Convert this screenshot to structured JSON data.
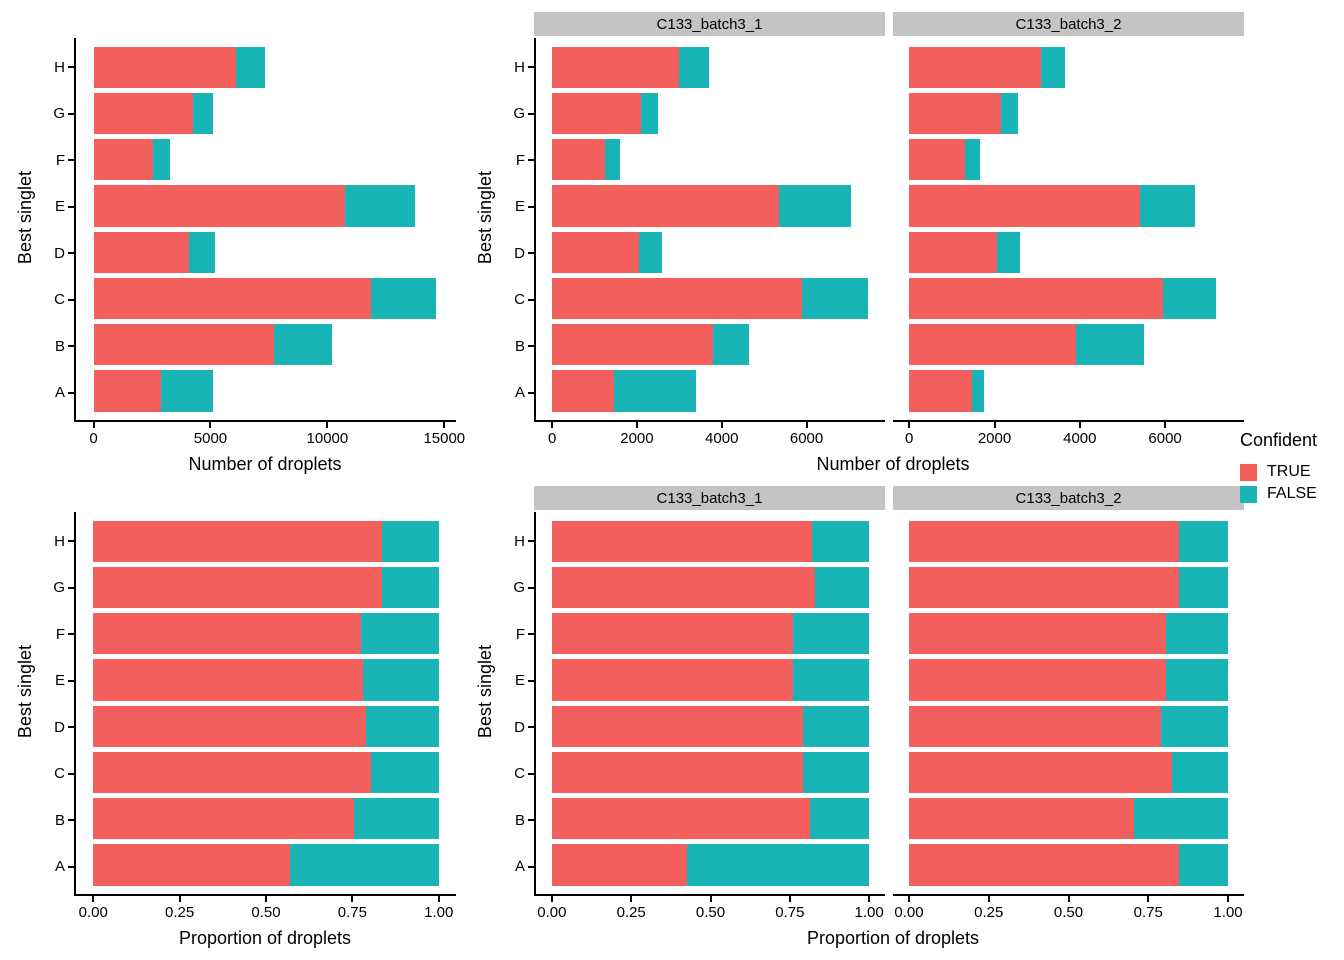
{
  "figure": {
    "background": "#ffffff"
  },
  "legend": {
    "title": "Confident",
    "items": [
      {
        "label": "TRUE",
        "color": "#f25f5c"
      },
      {
        "label": "FALSE",
        "color": "#19b4b6"
      }
    ]
  },
  "colors": {
    "true_fill": "#f25f5c",
    "false_fill": "#19b4b6",
    "strip_bg": "#c4c4c4",
    "axis_line": "#000000"
  },
  "categories": [
    "A",
    "B",
    "C",
    "D",
    "E",
    "F",
    "G",
    "H"
  ],
  "chart_data": [
    {
      "id": "counts_all",
      "type": "bar",
      "orientation": "horizontal",
      "stacked": true,
      "xlabel": "Number of droplets",
      "ylabel": "Best singlet",
      "categories": [
        "A",
        "B",
        "C",
        "D",
        "E",
        "F",
        "G",
        "H"
      ],
      "series": [
        {
          "name": "TRUE",
          "values": [
            2900,
            7700,
            11850,
            4100,
            10750,
            2550,
            4250,
            6100
          ]
        },
        {
          "name": "FALSE",
          "values": [
            2200,
            2500,
            2800,
            1100,
            3000,
            700,
            850,
            1250
          ]
        }
      ],
      "xticks": [
        0,
        5000,
        10000,
        15000
      ],
      "xtick_labels": [
        "0",
        "5000",
        "10000",
        "15000"
      ],
      "xdomain": [
        -750,
        15500
      ],
      "grid": false,
      "legend_position": "right"
    },
    {
      "id": "counts_faceted",
      "type": "bar",
      "orientation": "horizontal",
      "stacked": true,
      "xlabel": "Number of droplets",
      "ylabel": "Best singlet",
      "categories": [
        "A",
        "B",
        "C",
        "D",
        "E",
        "F",
        "G",
        "H"
      ],
      "xticks": [
        0,
        2000,
        4000,
        6000
      ],
      "xtick_labels": [
        "0",
        "2000",
        "4000",
        "6000"
      ],
      "xdomain": [
        -380,
        7850
      ],
      "grid": false,
      "facets": [
        {
          "label": "C133_batch3_1",
          "series": [
            {
              "name": "TRUE",
              "values": [
                1450,
                3800,
                5900,
                2050,
                5350,
                1250,
                2100,
                3000
              ]
            },
            {
              "name": "FALSE",
              "values": [
                1950,
                850,
                1550,
                550,
                1700,
                350,
                400,
                700
              ]
            }
          ]
        },
        {
          "label": "C133_batch3_2",
          "series": [
            {
              "name": "TRUE",
              "values": [
                1480,
                3900,
                5950,
                2050,
                5400,
                1300,
                2150,
                3100
              ]
            },
            {
              "name": "FALSE",
              "values": [
                270,
                1600,
                1250,
                550,
                1300,
                350,
                400,
                550
              ]
            }
          ]
        }
      ]
    },
    {
      "id": "props_all",
      "type": "bar",
      "orientation": "horizontal",
      "stacked": true,
      "xlabel": "Proportion of droplets",
      "ylabel": "Best singlet",
      "categories": [
        "A",
        "B",
        "C",
        "D",
        "E",
        "F",
        "G",
        "H"
      ],
      "series": [
        {
          "name": "TRUE",
          "values": [
            0.57,
            0.755,
            0.805,
            0.79,
            0.78,
            0.775,
            0.835,
            0.835
          ]
        },
        {
          "name": "FALSE",
          "values": [
            0.43,
            0.245,
            0.195,
            0.21,
            0.22,
            0.225,
            0.165,
            0.165
          ]
        }
      ],
      "xticks": [
        0,
        0.25,
        0.5,
        0.75,
        1
      ],
      "xtick_labels": [
        "0.00",
        "0.25",
        "0.50",
        "0.75",
        "1.00"
      ],
      "xdomain": [
        -0.05,
        1.05
      ],
      "grid": false
    },
    {
      "id": "props_faceted",
      "type": "bar",
      "orientation": "horizontal",
      "stacked": true,
      "xlabel": "Proportion of droplets",
      "ylabel": "Best singlet",
      "categories": [
        "A",
        "B",
        "C",
        "D",
        "E",
        "F",
        "G",
        "H"
      ],
      "xticks": [
        0,
        0.25,
        0.5,
        0.75,
        1
      ],
      "xtick_labels": [
        "0.00",
        "0.25",
        "0.50",
        "0.75",
        "1.00"
      ],
      "xdomain": [
        -0.05,
        1.05
      ],
      "grid": false,
      "facets": [
        {
          "label": "C133_batch3_1",
          "series": [
            {
              "name": "TRUE",
              "values": [
                0.425,
                0.815,
                0.79,
                0.79,
                0.76,
                0.76,
                0.83,
                0.82
              ]
            },
            {
              "name": "FALSE",
              "values": [
                0.575,
                0.185,
                0.21,
                0.21,
                0.24,
                0.24,
                0.17,
                0.18
              ]
            }
          ]
        },
        {
          "label": "C133_batch3_2",
          "series": [
            {
              "name": "TRUE",
              "values": [
                0.845,
                0.705,
                0.825,
                0.79,
                0.805,
                0.805,
                0.845,
                0.845
              ]
            },
            {
              "name": "FALSE",
              "values": [
                0.155,
                0.295,
                0.175,
                0.21,
                0.195,
                0.195,
                0.155,
                0.155
              ]
            }
          ]
        }
      ]
    }
  ]
}
